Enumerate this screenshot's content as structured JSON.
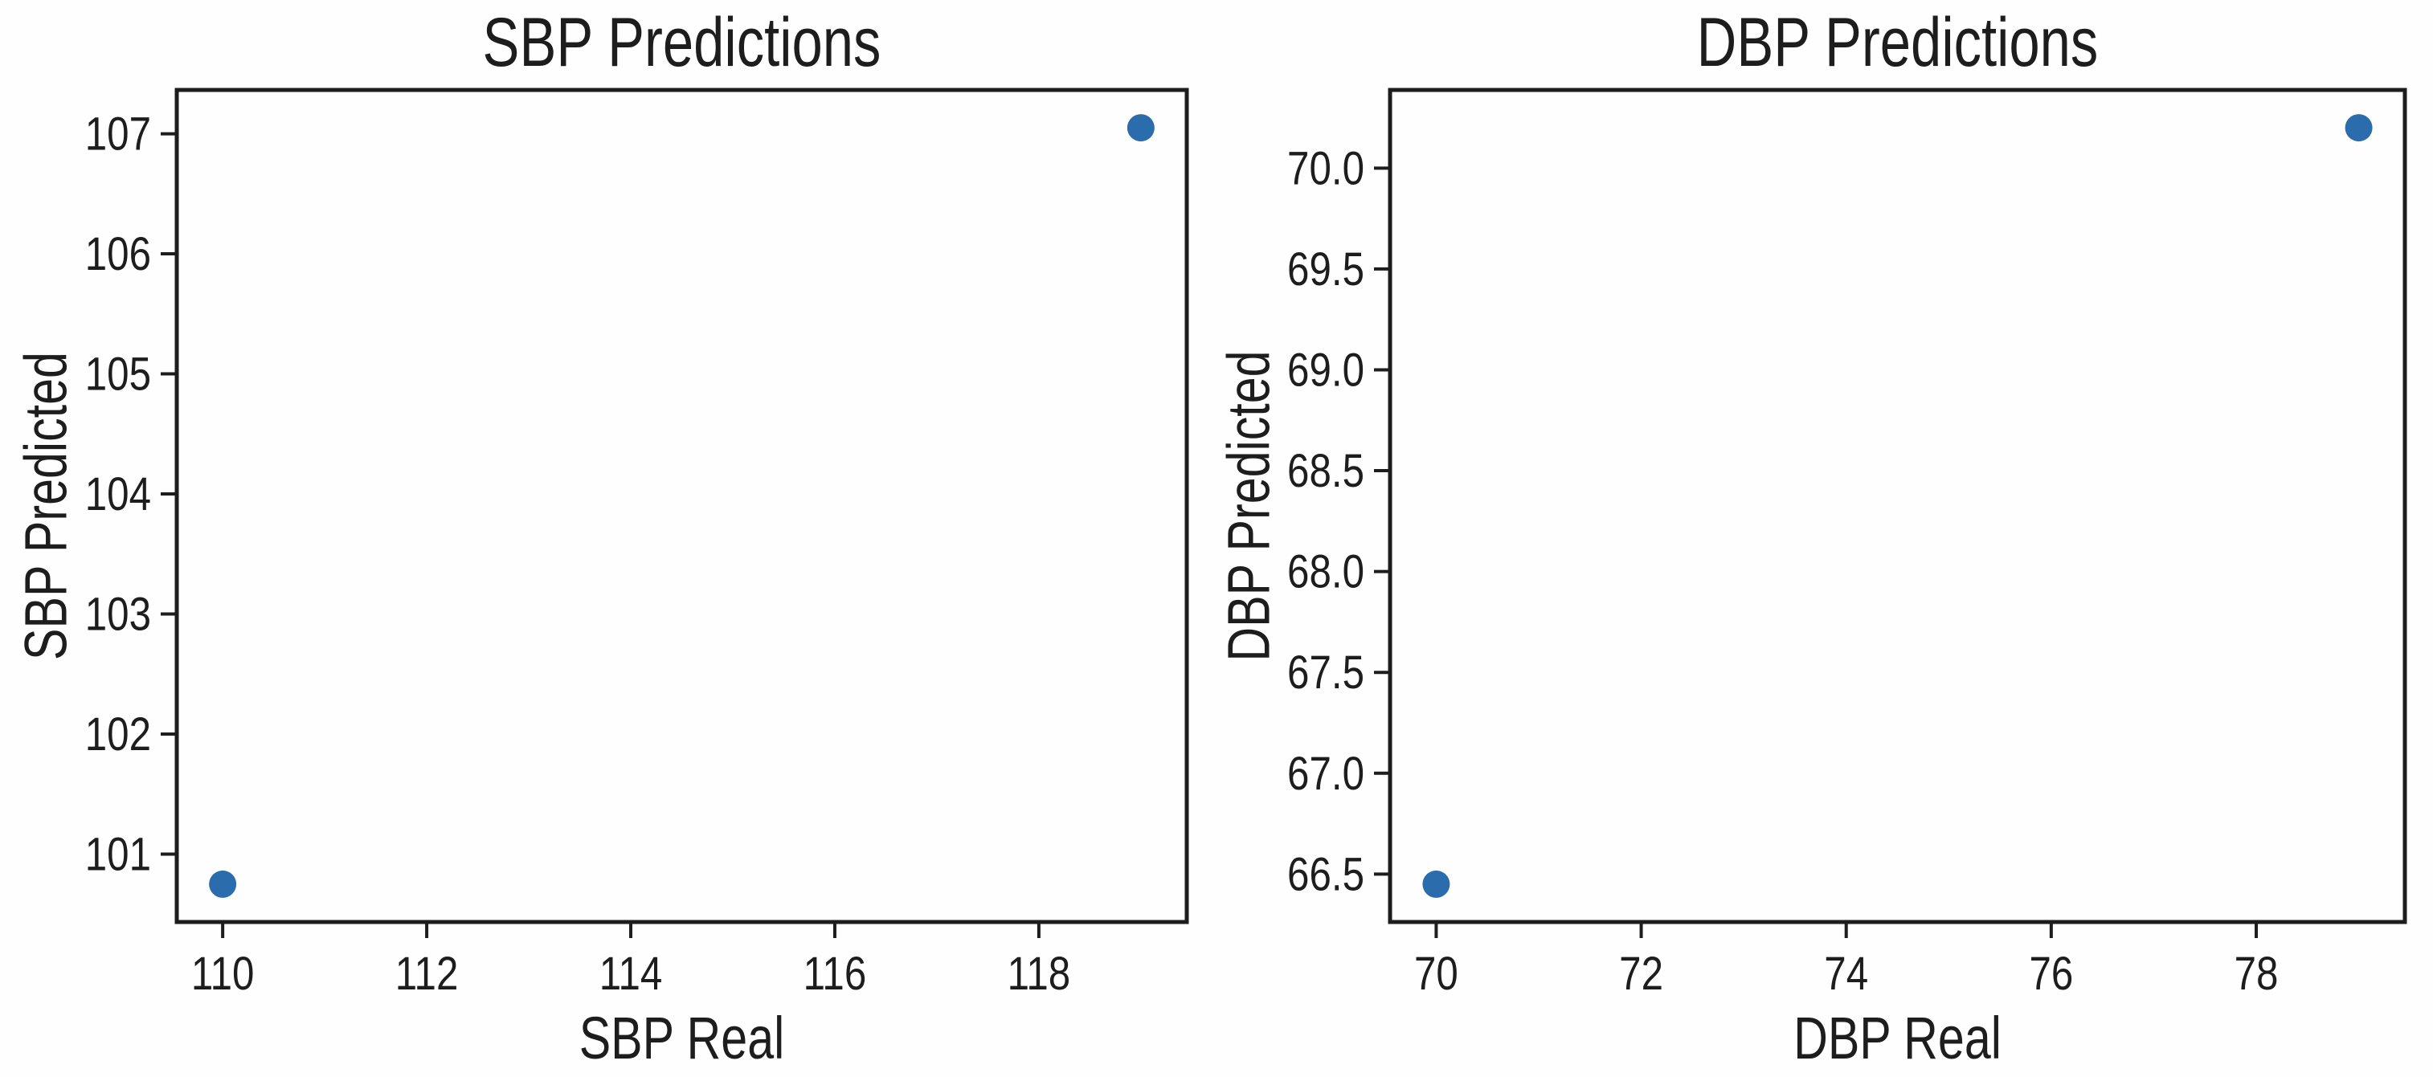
{
  "figure": {
    "background": "#fefefe",
    "panel_count": 2
  },
  "colors": {
    "marker": "#2b6cad",
    "axis": "#1d1d1d",
    "text": "#1d1d1d"
  },
  "chart_data": [
    {
      "type": "scatter",
      "title": "SBP Predictions",
      "xlabel": "SBP Real",
      "ylabel": "SBP Predicted",
      "x": [
        110,
        119
      ],
      "y": [
        100.75,
        107.05
      ],
      "xlim": [
        109.55,
        119.45
      ],
      "ylim": [
        100.435,
        107.365
      ],
      "xticks": [
        110,
        112,
        114,
        116,
        118
      ],
      "xtick_labels": [
        "110",
        "112",
        "114",
        "116",
        "118"
      ],
      "yticks": [
        101,
        102,
        103,
        104,
        105,
        106,
        107
      ],
      "ytick_labels": [
        "101",
        "102",
        "103",
        "104",
        "105",
        "106",
        "107"
      ],
      "grid": false,
      "legend": null
    },
    {
      "type": "scatter",
      "title": "DBP Predictions",
      "xlabel": "DBP Real",
      "ylabel": "DBP Predicted",
      "x": [
        70,
        79
      ],
      "y": [
        66.45,
        70.2
      ],
      "xlim": [
        69.55,
        79.45
      ],
      "ylim": [
        66.2625,
        70.3875
      ],
      "xticks": [
        70,
        72,
        74,
        76,
        78
      ],
      "xtick_labels": [
        "70",
        "72",
        "74",
        "76",
        "78"
      ],
      "yticks": [
        66.5,
        67.0,
        67.5,
        68.0,
        68.5,
        69.0,
        69.5,
        70.0
      ],
      "ytick_labels": [
        "66.5",
        "67.0",
        "67.5",
        "68.0",
        "68.5",
        "69.0",
        "69.5",
        "70.0"
      ],
      "grid": false,
      "legend": null
    }
  ]
}
